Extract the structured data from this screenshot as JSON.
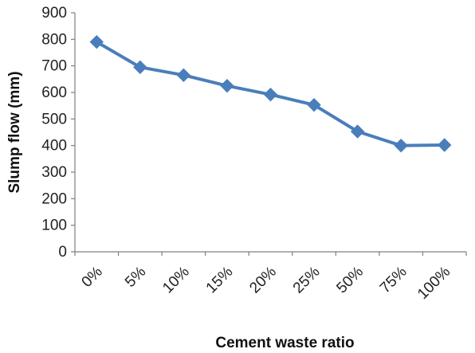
{
  "chart_data": {
    "type": "line",
    "categories": [
      "0%",
      "5%",
      "10%",
      "15%",
      "20%",
      "25%",
      "50%",
      "75%",
      "100%"
    ],
    "series": [
      {
        "values": [
          790,
          695,
          665,
          625,
          592,
          553,
          453,
          400,
          402
        ]
      }
    ],
    "xlabel": "Cement waste ratio",
    "ylabel": "Slump flow (mm)",
    "ylim": [
      0,
      900
    ],
    "yticks": [
      "0",
      "100",
      "200",
      "300",
      "400",
      "500",
      "600",
      "700",
      "800",
      "900"
    ],
    "grid": false,
    "marker": "diamond",
    "colors": {
      "series": "#4a7ebb",
      "marker": "#4a7ebb"
    }
  }
}
